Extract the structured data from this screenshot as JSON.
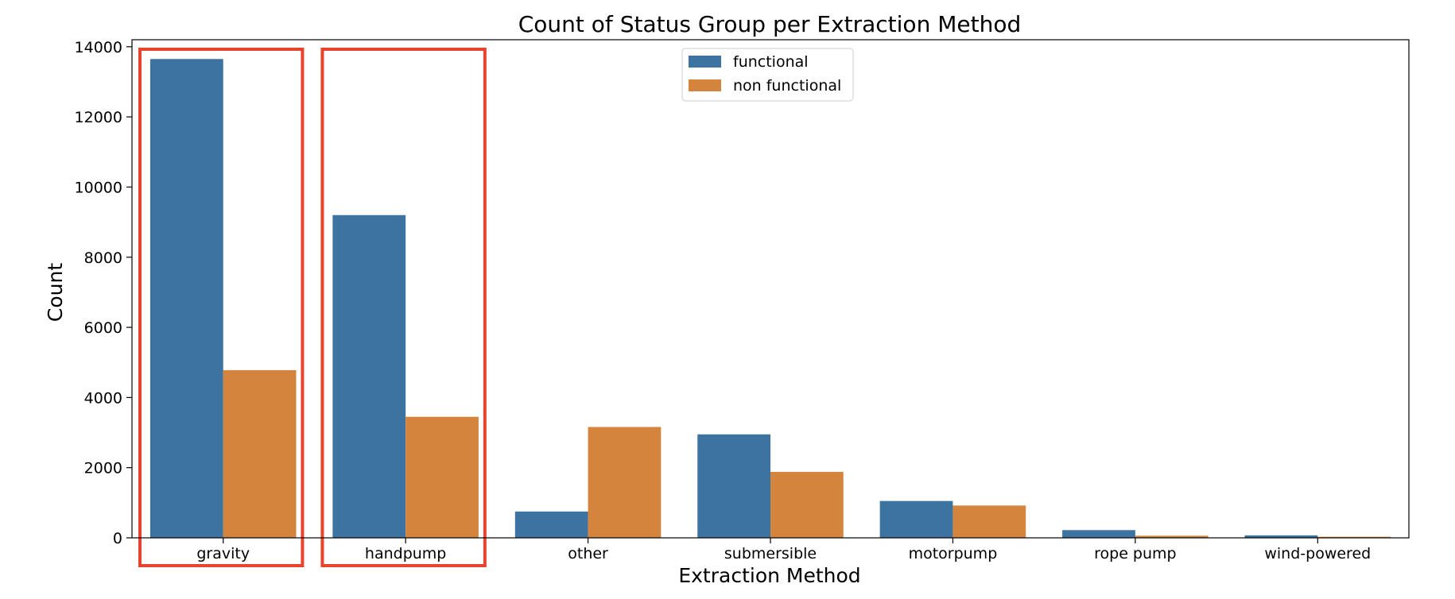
{
  "chart_data": {
    "type": "bar",
    "title": "Count of Status Group per Extraction Method",
    "xlabel": "Extraction Method",
    "ylabel": "Count",
    "categories": [
      "gravity",
      "handpump",
      "other",
      "submersible",
      "motorpump",
      "rope pump",
      "wind-powered"
    ],
    "series": [
      {
        "name": "functional",
        "color": "#3d73a0",
        "values": [
          13650,
          9200,
          750,
          2950,
          1050,
          220,
          70
        ]
      },
      {
        "name": "non functional",
        "color": "#d5843e",
        "values": [
          4780,
          3450,
          3160,
          1880,
          920,
          60,
          30
        ]
      }
    ],
    "ylim": [
      0,
      14200
    ],
    "yticks": [
      0,
      2000,
      4000,
      6000,
      8000,
      10000,
      12000,
      14000
    ],
    "legend_position": "top-center",
    "grid": false,
    "highlighted_categories": [
      "gravity",
      "handpump"
    ],
    "highlight_color": "#e8432d"
  }
}
